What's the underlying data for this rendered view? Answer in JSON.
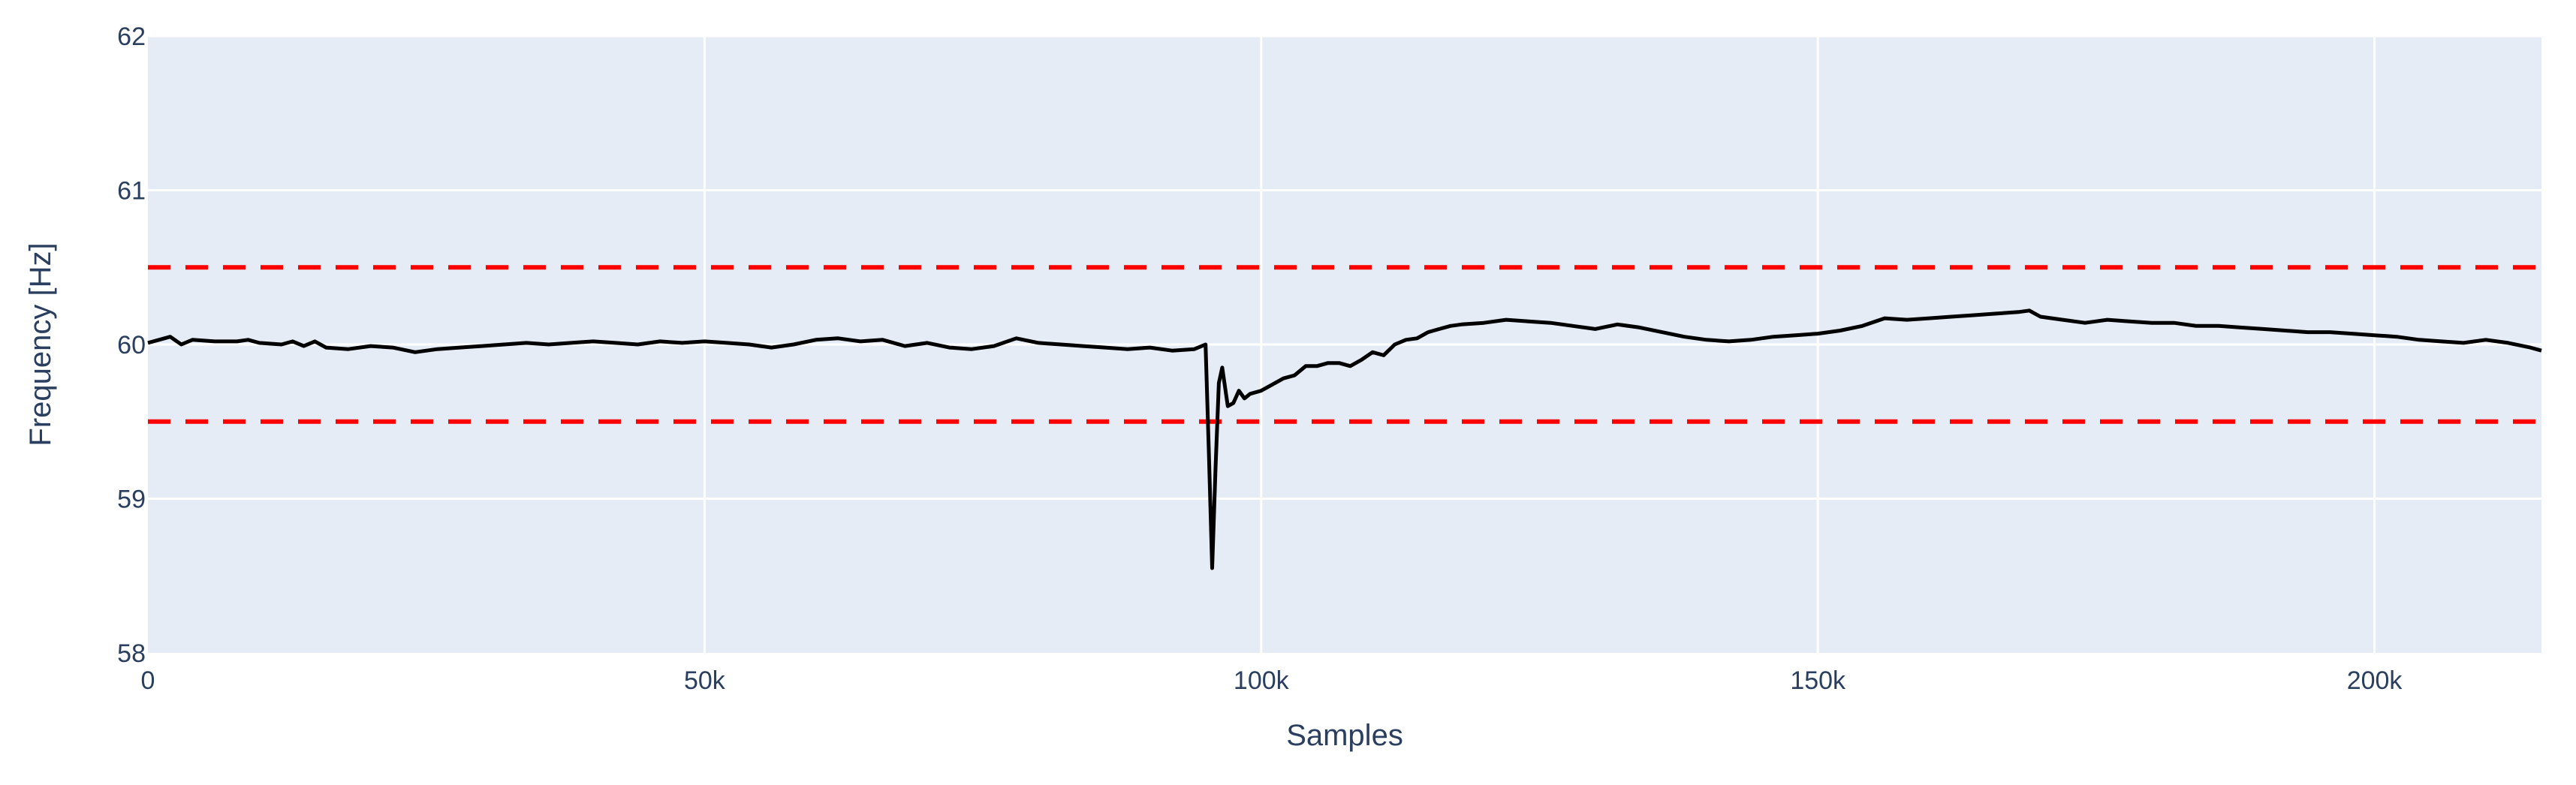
{
  "chart_data": {
    "type": "line",
    "xlabel": "Samples",
    "ylabel": "Frequency [Hz]",
    "xlim": [
      0,
      215000
    ],
    "ylim": [
      58,
      62
    ],
    "x_ticks": [
      0,
      50000,
      100000,
      150000,
      200000
    ],
    "x_tick_labels": [
      "0",
      "50k",
      "100k",
      "150k",
      "200k"
    ],
    "y_ticks": [
      58,
      59,
      60,
      61,
      62
    ],
    "y_tick_labels": [
      "58",
      "59",
      "60",
      "61",
      "62"
    ],
    "grid": true,
    "colors": {
      "plot_bg": "#e5ecf6",
      "grid": "#ffffff",
      "series": "#000000",
      "threshold": "#ff0000",
      "text": "#2a3f5f"
    },
    "series": [
      {
        "x": [
          0,
          1000,
          2000,
          3000,
          4000,
          6000,
          8000,
          9000,
          10000,
          12000,
          13000,
          14000,
          15000,
          16000,
          18000,
          20000,
          22000,
          24000,
          26000,
          28000,
          30000,
          32000,
          34000,
          36000,
          38000,
          40000,
          42000,
          44000,
          46000,
          48000,
          50000,
          52000,
          54000,
          56000,
          58000,
          60000,
          62000,
          64000,
          66000,
          68000,
          70000,
          72000,
          74000,
          76000,
          78000,
          80000,
          82000,
          84000,
          86000,
          88000,
          90000,
          92000,
          94000,
          95000,
          95300,
          95600,
          95900,
          96200,
          96500,
          97000,
          97500,
          98000,
          98500,
          99000,
          100000,
          101000,
          102000,
          103000,
          104000,
          105000,
          106000,
          107000,
          108000,
          109000,
          110000,
          111000,
          112000,
          113000,
          114000,
          115000,
          116000,
          117000,
          118000,
          120000,
          122000,
          124000,
          126000,
          128000,
          130000,
          132000,
          134000,
          136000,
          138000,
          140000,
          142000,
          144000,
          146000,
          148000,
          150000,
          152000,
          154000,
          156000,
          158000,
          160000,
          162000,
          164000,
          166000,
          168000,
          169000,
          170000,
          172000,
          174000,
          176000,
          178000,
          180000,
          182000,
          184000,
          186000,
          188000,
          190000,
          192000,
          194000,
          196000,
          198000,
          200000,
          202000,
          204000,
          206000,
          208000,
          210000,
          212000,
          214000,
          215000
        ],
        "y": [
          60.01,
          60.03,
          60.05,
          60.0,
          60.03,
          60.02,
          60.02,
          60.03,
          60.01,
          60.0,
          60.02,
          59.99,
          60.02,
          59.98,
          59.97,
          59.99,
          59.98,
          59.95,
          59.97,
          59.98,
          59.99,
          60.0,
          60.01,
          60.0,
          60.01,
          60.02,
          60.01,
          60.0,
          60.02,
          60.01,
          60.02,
          60.01,
          60.0,
          59.98,
          60.0,
          60.03,
          60.04,
          60.02,
          60.03,
          59.99,
          60.01,
          59.98,
          59.97,
          59.99,
          60.04,
          60.01,
          60.0,
          59.99,
          59.98,
          59.97,
          59.98,
          59.96,
          59.97,
          60.0,
          59.3,
          58.55,
          59.2,
          59.75,
          59.85,
          59.6,
          59.62,
          59.7,
          59.65,
          59.68,
          59.7,
          59.74,
          59.78,
          59.8,
          59.86,
          59.86,
          59.88,
          59.88,
          59.86,
          59.9,
          59.95,
          59.93,
          60.0,
          60.03,
          60.04,
          60.08,
          60.1,
          60.12,
          60.13,
          60.14,
          60.16,
          60.15,
          60.14,
          60.12,
          60.1,
          60.13,
          60.11,
          60.08,
          60.05,
          60.03,
          60.02,
          60.03,
          60.05,
          60.06,
          60.07,
          60.09,
          60.12,
          60.17,
          60.16,
          60.17,
          60.18,
          60.19,
          60.2,
          60.21,
          60.22,
          60.18,
          60.16,
          60.14,
          60.16,
          60.15,
          60.14,
          60.14,
          60.12,
          60.12,
          60.11,
          60.1,
          60.09,
          60.08,
          60.08,
          60.07,
          60.06,
          60.05,
          60.03,
          60.02,
          60.01,
          60.03,
          60.01,
          59.98,
          59.96
        ]
      }
    ],
    "thresholds": [
      60.5,
      59.5
    ]
  }
}
